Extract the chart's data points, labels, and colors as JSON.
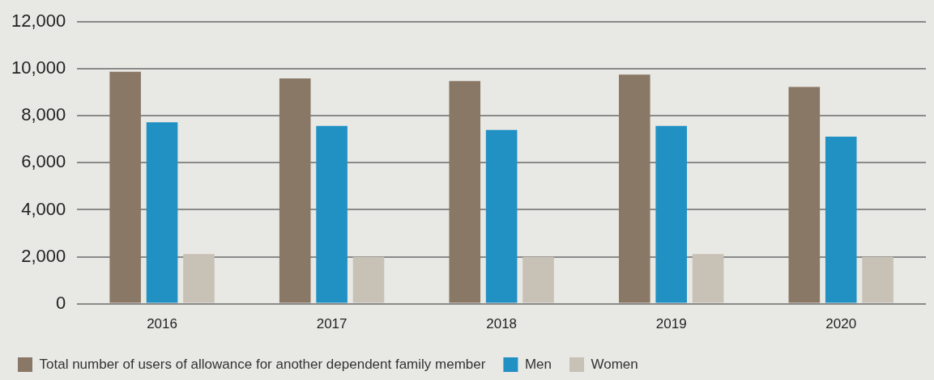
{
  "chart_data": {
    "type": "bar",
    "categories": [
      "2016",
      "2017",
      "2018",
      "2019",
      "2020"
    ],
    "series": [
      {
        "name": "Total number of users of allowance for another dependent family member",
        "color": "#8a7866",
        "values": [
          9880,
          9600,
          9480,
          9760,
          9230
        ]
      },
      {
        "name": "Men",
        "color": "#2191c4",
        "values": [
          7730,
          7570,
          7400,
          7570,
          7120
        ]
      },
      {
        "name": "Women",
        "color": "#c8c1b6",
        "values": [
          2110,
          1990,
          1990,
          2110,
          1990
        ]
      }
    ],
    "ylim": [
      0,
      12000
    ],
    "yticks": [
      {
        "value": 0,
        "label": "0"
      },
      {
        "value": 2000,
        "label": "2,000"
      },
      {
        "value": 4000,
        "label": "4,000"
      },
      {
        "value": 6000,
        "label": "6,000"
      },
      {
        "value": 8000,
        "label": "8,000"
      },
      {
        "value": 10000,
        "label": "10,000"
      },
      {
        "value": 12000,
        "label": "12,000"
      }
    ],
    "grid": "y",
    "legend": "bottom"
  }
}
